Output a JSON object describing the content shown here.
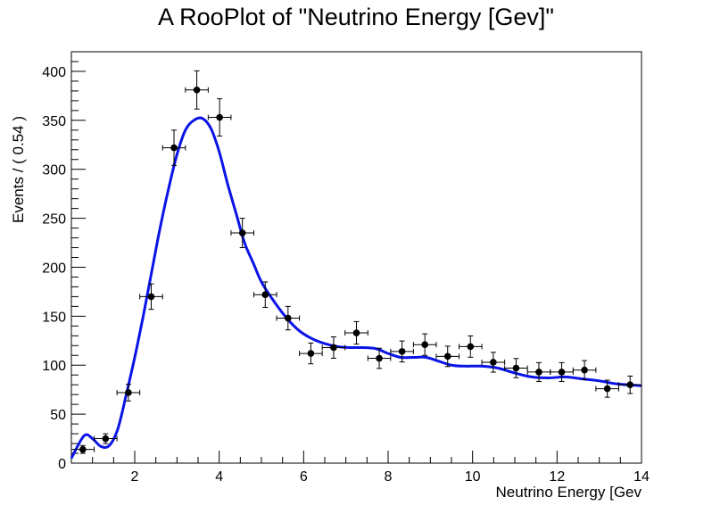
{
  "chart_data": {
    "type": "scatter",
    "title": "A RooPlot of \"Neutrino Energy [Gev]\"",
    "xlabel": "Neutrino Energy [Gev",
    "ylabel": "Events / ( 0.54 )",
    "xlim": [
      0.5,
      14
    ],
    "ylim": [
      0,
      420
    ],
    "x_ticks": [
      2,
      4,
      6,
      8,
      10,
      12,
      14
    ],
    "x_tick_labels": [
      "2",
      "4",
      "6",
      "8",
      "10",
      "12",
      "14"
    ],
    "y_ticks": [
      0,
      50,
      100,
      150,
      200,
      250,
      300,
      350,
      400
    ],
    "y_tick_labels": [
      "0",
      "50",
      "100",
      "150",
      "200",
      "250",
      "300",
      "350",
      "400"
    ],
    "grid": false,
    "legend": "none",
    "bin_width": 0.54,
    "series": [
      {
        "kind": "points-with-errors",
        "color": "#000000",
        "x": [
          0.77,
          1.31,
          1.85,
          2.39,
          2.93,
          3.47,
          4.01,
          4.55,
          5.09,
          5.63,
          6.17,
          6.71,
          7.25,
          7.79,
          8.33,
          8.87,
          9.41,
          9.95,
          10.49,
          11.03,
          11.57,
          12.11,
          12.65,
          13.19,
          13.73
        ],
        "y": [
          14,
          25,
          72,
          170,
          322,
          381,
          353,
          235,
          172,
          148,
          112,
          118,
          133,
          107,
          114,
          121,
          109,
          119,
          103,
          97,
          93,
          93,
          95,
          76,
          80
        ],
        "yerr": [
          4,
          5,
          8.5,
          13,
          18,
          19.5,
          19,
          15,
          13,
          12,
          10.6,
          10.9,
          11.5,
          10.3,
          10.7,
          11,
          10.4,
          10.9,
          10.1,
          9.8,
          9.6,
          9.6,
          9.7,
          8.7,
          8.9
        ]
      },
      {
        "kind": "curve",
        "color": "#0a14e6",
        "x": [
          0.5,
          0.8,
          1.0,
          1.2,
          1.4,
          1.6,
          1.8,
          2.0,
          2.2,
          2.4,
          2.6,
          2.8,
          3.0,
          3.2,
          3.4,
          3.6,
          3.8,
          4.0,
          4.2,
          4.4,
          4.6,
          4.8,
          5.0,
          5.3,
          5.6,
          5.9,
          6.2,
          6.5,
          6.8,
          7.1,
          7.4,
          7.7,
          8.0,
          8.3,
          8.6,
          8.9,
          9.2,
          9.5,
          9.8,
          10.2,
          10.6,
          11.0,
          11.4,
          11.8,
          12.2,
          12.6,
          13.0,
          13.4,
          14.0
        ],
        "y": [
          5,
          28,
          25,
          17,
          18,
          35,
          70,
          108,
          150,
          195,
          240,
          280,
          315,
          340,
          350,
          352,
          342,
          318,
          285,
          255,
          225,
          205,
          185,
          165,
          148,
          135,
          127,
          122,
          119,
          118,
          118,
          117,
          112,
          108,
          108,
          108,
          104,
          100,
          99,
          99,
          97,
          92,
          88,
          87,
          88,
          86,
          84,
          81,
          79
        ]
      }
    ]
  }
}
